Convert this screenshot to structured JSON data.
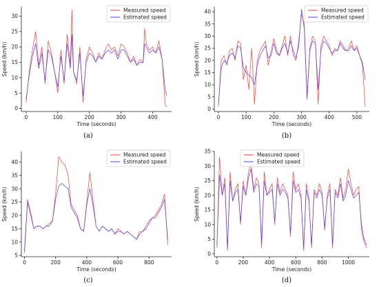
{
  "colors": {
    "measured": "#ff3b30",
    "estimated": "#4a3cff"
  },
  "chart_data": [
    {
      "type": "line",
      "caption": "(a)",
      "xlabel": "Time (seconds)",
      "ylabel": "Speed (km/h)",
      "xlim": [
        -15,
        460
      ],
      "ylim": [
        -1,
        33
      ],
      "xticks": [
        0,
        100,
        200,
        300,
        400
      ],
      "yticks": [
        0,
        5,
        10,
        15,
        20,
        25,
        30
      ],
      "legend": "top-right",
      "series": [
        {
          "name": "Measured speed",
          "color": "#ff3b30",
          "x": [
            0,
            10,
            20,
            30,
            40,
            50,
            60,
            70,
            80,
            90,
            100,
            110,
            120,
            130,
            140,
            145,
            150,
            160,
            170,
            180,
            190,
            200,
            210,
            220,
            230,
            240,
            250,
            260,
            270,
            280,
            290,
            300,
            310,
            320,
            330,
            340,
            350,
            360,
            370,
            375,
            380,
            390,
            400,
            410,
            420,
            430,
            440,
            445
          ],
          "y": [
            2,
            12,
            19,
            25,
            14,
            20,
            8,
            22,
            18,
            12,
            5,
            19,
            8,
            24,
            14,
            32,
            12,
            8,
            20,
            2,
            16,
            20,
            18,
            15,
            18,
            16,
            19,
            21,
            19,
            20,
            17,
            21,
            20,
            18,
            15,
            17,
            14,
            16,
            15,
            26,
            21,
            19,
            20,
            18,
            22,
            16,
            1,
            0.5
          ]
        },
        {
          "name": "Estimated speed",
          "color": "#4a3cff",
          "x": [
            0,
            10,
            20,
            30,
            40,
            50,
            60,
            70,
            80,
            90,
            100,
            110,
            120,
            130,
            140,
            145,
            150,
            160,
            170,
            180,
            190,
            200,
            210,
            220,
            230,
            240,
            250,
            260,
            270,
            280,
            290,
            300,
            310,
            320,
            330,
            340,
            350,
            360,
            370,
            375,
            380,
            390,
            400,
            410,
            420,
            430,
            440,
            445
          ],
          "y": [
            3,
            11,
            17,
            21,
            13,
            18,
            9,
            19,
            17,
            12,
            7,
            17,
            9,
            21,
            13,
            24,
            12,
            9,
            18,
            4,
            15,
            18,
            17,
            15,
            17,
            16,
            18,
            19,
            18,
            19,
            16,
            19,
            19,
            17,
            15,
            16,
            14,
            15,
            15,
            21,
            20,
            18,
            19,
            18,
            20,
            16,
            6,
            4
          ]
        }
      ]
    },
    {
      "type": "line",
      "caption": "(b)",
      "xlabel": "Time (seconds)",
      "ylabel": "Speed (km/h)",
      "xlim": [
        -15,
        545
      ],
      "ylim": [
        -1,
        42
      ],
      "xticks": [
        0,
        100,
        200,
        300,
        400,
        500
      ],
      "yticks": [
        0,
        5,
        10,
        15,
        20,
        25,
        30,
        35,
        40
      ],
      "legend": "top-right",
      "series": [
        {
          "name": "Measured speed",
          "color": "#ff3b30",
          "x": [
            0,
            10,
            20,
            30,
            40,
            50,
            60,
            70,
            80,
            90,
            100,
            110,
            120,
            130,
            140,
            150,
            160,
            170,
            180,
            190,
            200,
            210,
            220,
            230,
            240,
            250,
            260,
            270,
            280,
            290,
            300,
            310,
            320,
            330,
            340,
            350,
            360,
            370,
            380,
            390,
            400,
            410,
            420,
            430,
            440,
            450,
            460,
            470,
            480,
            490,
            500,
            510,
            520,
            530
          ],
          "y": [
            1,
            20,
            22,
            18,
            24,
            25,
            20,
            28,
            27,
            12,
            18,
            8,
            25,
            2,
            20,
            24,
            26,
            28,
            18,
            24,
            29,
            24,
            22,
            26,
            30,
            22,
            30,
            22,
            20,
            28,
            39,
            35,
            5,
            25,
            30,
            28,
            2,
            26,
            30,
            28,
            26,
            22,
            25,
            24,
            28,
            26,
            24,
            25,
            28,
            24,
            26,
            22,
            18,
            1
          ]
        },
        {
          "name": "Estimated speed",
          "color": "#4a3cff",
          "x": [
            0,
            10,
            20,
            30,
            40,
            50,
            60,
            70,
            80,
            90,
            100,
            110,
            120,
            130,
            140,
            150,
            160,
            170,
            180,
            190,
            200,
            210,
            220,
            230,
            240,
            250,
            260,
            270,
            280,
            290,
            300,
            310,
            320,
            330,
            340,
            350,
            360,
            370,
            380,
            390,
            400,
            410,
            420,
            430,
            440,
            450,
            460,
            470,
            480,
            490,
            500,
            510,
            520,
            530
          ],
          "y": [
            2,
            17,
            20,
            19,
            22,
            23,
            21,
            26,
            25,
            17,
            15,
            14,
            13,
            10,
            18,
            22,
            24,
            26,
            21,
            22,
            27,
            23,
            22,
            25,
            27,
            23,
            28,
            24,
            21,
            26,
            41,
            33,
            4,
            24,
            28,
            27,
            8,
            24,
            28,
            27,
            25,
            23,
            24,
            24,
            27,
            25,
            24,
            24,
            26,
            24,
            25,
            22,
            19,
            12
          ]
        }
      ]
    },
    {
      "type": "line",
      "caption": "(c)",
      "xlabel": "Time (seconds)",
      "ylabel": "Speed (km/h)",
      "xlim": [
        -20,
        945
      ],
      "ylim": [
        4.5,
        44
      ],
      "xticks": [
        0,
        200,
        400,
        600,
        800
      ],
      "yticks": [
        5,
        10,
        15,
        20,
        25,
        30,
        35,
        40
      ],
      "legend": "top-right",
      "series": [
        {
          "name": "Measured speed",
          "color": "#ff3b30",
          "x": [
            0,
            20,
            40,
            60,
            80,
            100,
            120,
            140,
            160,
            180,
            200,
            220,
            240,
            260,
            280,
            300,
            320,
            340,
            360,
            380,
            400,
            420,
            440,
            460,
            480,
            500,
            520,
            540,
            560,
            580,
            600,
            620,
            640,
            660,
            680,
            700,
            720,
            740,
            760,
            780,
            800,
            820,
            840,
            860,
            880,
            900,
            920
          ],
          "y": [
            7,
            26,
            21,
            15,
            16,
            16,
            15,
            16,
            17,
            18,
            28,
            42,
            40,
            39,
            35,
            24,
            22,
            20,
            15,
            14,
            25,
            36,
            26,
            16,
            14,
            16,
            15,
            14,
            15,
            13,
            15,
            14,
            13,
            14,
            13,
            12,
            11,
            14,
            14,
            16,
            18,
            19,
            20,
            22,
            24,
            28,
            9
          ]
        },
        {
          "name": "Estimated speed",
          "color": "#4a3cff",
          "x": [
            0,
            20,
            40,
            60,
            80,
            100,
            120,
            140,
            160,
            180,
            200,
            220,
            240,
            260,
            280,
            300,
            320,
            340,
            360,
            380,
            400,
            420,
            440,
            460,
            480,
            500,
            520,
            540,
            560,
            580,
            600,
            620,
            640,
            660,
            680,
            700,
            720,
            740,
            760,
            780,
            800,
            820,
            840,
            860,
            880,
            900,
            920
          ],
          "y": [
            6,
            25,
            20,
            15,
            16,
            16,
            15,
            16,
            16,
            18,
            26,
            31,
            32,
            31,
            30,
            23,
            21,
            19,
            15,
            14,
            24,
            30,
            24,
            16,
            14,
            16,
            15,
            14,
            15,
            13,
            14,
            14,
            13,
            14,
            13,
            12,
            11,
            13,
            14,
            15,
            17,
            19,
            19,
            21,
            23,
            26,
            11
          ]
        }
      ]
    },
    {
      "type": "line",
      "caption": "(d)",
      "xlabel": "Time (seconds)",
      "ylabel": "Speed (km/h)",
      "xlim": [
        -20,
        1160
      ],
      "ylim": [
        -1,
        35
      ],
      "xticks": [
        0,
        200,
        400,
        600,
        800,
        1000
      ],
      "yticks": [
        0,
        5,
        10,
        15,
        20,
        25,
        30,
        35
      ],
      "legend": "top-left",
      "series": [
        {
          "name": "Measured speed",
          "color": "#ff3b30",
          "x": [
            0,
            20,
            40,
            60,
            80,
            100,
            120,
            140,
            160,
            180,
            200,
            220,
            240,
            260,
            280,
            300,
            320,
            340,
            360,
            380,
            400,
            420,
            440,
            460,
            480,
            500,
            520,
            540,
            560,
            580,
            600,
            620,
            640,
            660,
            680,
            700,
            720,
            740,
            760,
            780,
            800,
            820,
            840,
            860,
            880,
            900,
            920,
            940,
            960,
            980,
            1000,
            1020,
            1040,
            1060,
            1080,
            1100,
            1120,
            1140
          ],
          "y": [
            2,
            33,
            20,
            26,
            1,
            28,
            18,
            22,
            24,
            10,
            25,
            20,
            28,
            31,
            22,
            26,
            24,
            2,
            28,
            20,
            22,
            24,
            10,
            26,
            21,
            24,
            22,
            20,
            6,
            28,
            22,
            24,
            20,
            1,
            24,
            19,
            2,
            22,
            20,
            24,
            21,
            8,
            20,
            24,
            2,
            22,
            20,
            26,
            19,
            22,
            29,
            24,
            20,
            22,
            23,
            8,
            4,
            2
          ]
        },
        {
          "name": "Estimated speed",
          "color": "#4a3cff",
          "x": [
            0,
            20,
            40,
            60,
            80,
            100,
            120,
            140,
            160,
            180,
            200,
            220,
            240,
            260,
            280,
            300,
            320,
            340,
            360,
            380,
            400,
            420,
            440,
            460,
            480,
            500,
            520,
            540,
            560,
            580,
            600,
            620,
            640,
            660,
            680,
            700,
            720,
            740,
            760,
            780,
            800,
            820,
            840,
            860,
            880,
            900,
            920,
            940,
            960,
            980,
            1000,
            1020,
            1040,
            1060,
            1080,
            1100,
            1120,
            1140
          ],
          "y": [
            3,
            27,
            20,
            24,
            2,
            25,
            18,
            21,
            22,
            11,
            23,
            20,
            26,
            29,
            21,
            24,
            23,
            4,
            25,
            20,
            21,
            22,
            11,
            24,
            20,
            22,
            21,
            19,
            7,
            25,
            21,
            22,
            19,
            2,
            22,
            18,
            3,
            21,
            19,
            22,
            20,
            9,
            19,
            22,
            3,
            21,
            19,
            24,
            18,
            20,
            25,
            22,
            19,
            20,
            21,
            10,
            5,
            3
          ]
        }
      ]
    }
  ]
}
